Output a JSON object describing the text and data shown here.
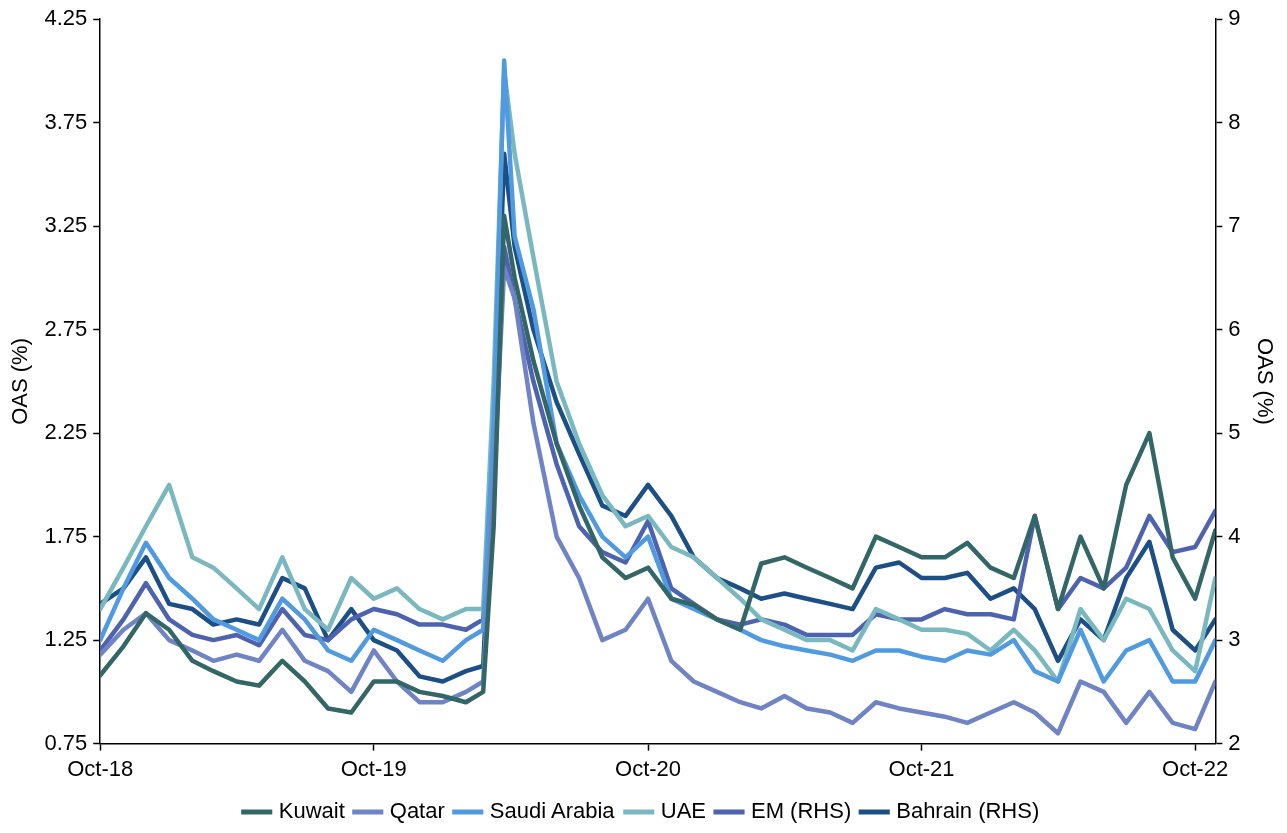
{
  "chart_data": {
    "type": "line",
    "ylabel": "OAS (%)",
    "y2label": "OAS (%)",
    "x": [
      "2018-10-01",
      "2018-11-01",
      "2018-12-01",
      "2019-01-01",
      "2019-02-01",
      "2019-03-01",
      "2019-04-01",
      "2019-05-01",
      "2019-06-01",
      "2019-07-01",
      "2019-08-01",
      "2019-09-01",
      "2019-10-01",
      "2019-11-01",
      "2019-12-01",
      "2020-01-01",
      "2020-02-01",
      "2020-02-24",
      "2020-03-09",
      "2020-03-23",
      "2020-04-06",
      "2020-05-01",
      "2020-06-01",
      "2020-07-01",
      "2020-08-01",
      "2020-09-01",
      "2020-10-01",
      "2020-11-01",
      "2020-12-01",
      "2021-01-01",
      "2021-02-01",
      "2021-03-01",
      "2021-04-01",
      "2021-05-01",
      "2021-06-01",
      "2021-07-01",
      "2021-08-01",
      "2021-09-01",
      "2021-10-01",
      "2021-11-01",
      "2021-12-01",
      "2022-01-01",
      "2022-02-01",
      "2022-03-01",
      "2022-04-01",
      "2022-05-01",
      "2022-06-01",
      "2022-07-01",
      "2022-08-01",
      "2022-09-01",
      "2022-10-01",
      "2022-10-28"
    ],
    "xlim": [
      "2018-10-01",
      "2022-10-28"
    ],
    "xticks": [
      {
        "value": "2018-10-01",
        "label": "Oct-18"
      },
      {
        "value": "2019-10-01",
        "label": "Oct-19"
      },
      {
        "value": "2020-10-01",
        "label": "Oct-20"
      },
      {
        "value": "2021-10-01",
        "label": "Oct-21"
      },
      {
        "value": "2022-10-01",
        "label": "Oct-22"
      }
    ],
    "ylim": [
      0.75,
      4.25
    ],
    "yticks": [
      0.75,
      1.25,
      1.75,
      2.25,
      2.75,
      3.25,
      3.75,
      4.25
    ],
    "y2lim": [
      2,
      9
    ],
    "y2ticks": [
      2,
      3,
      4,
      5,
      6,
      7,
      8,
      9
    ],
    "legend": "bottom",
    "marker": "none",
    "line_style": "solid",
    "series": [
      {
        "name": "Kuwait",
        "color": "#336666",
        "values": [
          1.08,
          1.22,
          1.38,
          1.3,
          1.15,
          1.1,
          1.05,
          1.03,
          1.15,
          1.05,
          0.92,
          0.9,
          1.05,
          1.05,
          1.0,
          0.98,
          0.95,
          1.0,
          1.8,
          3.3,
          3.0,
          2.6,
          2.2,
          1.9,
          1.65,
          1.55,
          1.6,
          1.45,
          1.42,
          1.35,
          1.3,
          1.62,
          1.65,
          1.6,
          1.55,
          1.5,
          1.75,
          1.7,
          1.65,
          1.65,
          1.72,
          1.6,
          1.55,
          1.85,
          1.4,
          1.75,
          1.5,
          2.0,
          2.25,
          1.65,
          1.45,
          1.78
        ]
      },
      {
        "name": "Qatar",
        "color": "#6f84c4",
        "values": [
          1.18,
          1.3,
          1.38,
          1.25,
          1.2,
          1.15,
          1.18,
          1.15,
          1.3,
          1.15,
          1.1,
          1.0,
          1.2,
          1.05,
          0.95,
          0.95,
          1.0,
          1.05,
          2.0,
          3.05,
          2.9,
          2.3,
          1.75,
          1.55,
          1.25,
          1.3,
          1.45,
          1.15,
          1.05,
          1.0,
          0.95,
          0.92,
          0.98,
          0.92,
          0.9,
          0.85,
          0.95,
          0.92,
          0.9,
          0.88,
          0.85,
          0.9,
          0.95,
          0.9,
          0.8,
          1.05,
          1.0,
          0.85,
          1.0,
          0.85,
          0.82,
          1.05
        ]
      },
      {
        "name": "Saudi Arabia",
        "color": "#4f9ae0",
        "values": [
          1.25,
          1.5,
          1.72,
          1.55,
          1.45,
          1.35,
          1.3,
          1.25,
          1.45,
          1.35,
          1.2,
          1.15,
          1.3,
          1.25,
          1.2,
          1.15,
          1.25,
          1.3,
          2.3,
          4.05,
          3.2,
          2.85,
          2.2,
          1.95,
          1.75,
          1.65,
          1.75,
          1.45,
          1.4,
          1.35,
          1.3,
          1.25,
          1.22,
          1.2,
          1.18,
          1.15,
          1.2,
          1.2,
          1.17,
          1.15,
          1.2,
          1.18,
          1.25,
          1.1,
          1.05,
          1.3,
          1.05,
          1.2,
          1.25,
          1.05,
          1.05,
          1.25
        ]
      },
      {
        "name": "UAE",
        "color": "#7ab8c0",
        "values": [
          1.4,
          1.6,
          1.8,
          2.0,
          1.65,
          1.6,
          1.5,
          1.4,
          1.65,
          1.4,
          1.3,
          1.55,
          1.45,
          1.5,
          1.4,
          1.35,
          1.4,
          1.4,
          2.5,
          4.0,
          3.6,
          3.1,
          2.5,
          2.2,
          1.95,
          1.8,
          1.85,
          1.7,
          1.65,
          1.55,
          1.45,
          1.35,
          1.3,
          1.25,
          1.25,
          1.2,
          1.4,
          1.35,
          1.3,
          1.3,
          1.28,
          1.2,
          1.3,
          1.2,
          1.05,
          1.4,
          1.25,
          1.45,
          1.4,
          1.2,
          1.1,
          1.55
        ]
      },
      {
        "name": "EM (RHS)",
        "color": "#4e63b0",
        "axis": "y2",
        "values": [
          2.9,
          3.2,
          3.55,
          3.2,
          3.05,
          3.0,
          3.05,
          2.95,
          3.3,
          3.05,
          3.0,
          3.2,
          3.3,
          3.25,
          3.15,
          3.15,
          3.1,
          3.2,
          4.5,
          6.8,
          6.3,
          5.5,
          4.7,
          4.1,
          3.85,
          3.75,
          4.15,
          3.5,
          3.35,
          3.2,
          3.15,
          3.2,
          3.15,
          3.05,
          3.05,
          3.05,
          3.25,
          3.2,
          3.2,
          3.3,
          3.25,
          3.25,
          3.2,
          4.2,
          3.3,
          3.6,
          3.5,
          3.7,
          4.2,
          3.85,
          3.9,
          4.25
        ]
      },
      {
        "name": "Bahrain (RHS)",
        "color": "#1b4f86",
        "axis": "y2",
        "values": [
          3.35,
          3.5,
          3.8,
          3.35,
          3.3,
          3.15,
          3.2,
          3.15,
          3.6,
          3.5,
          3.0,
          3.3,
          3.0,
          2.9,
          2.65,
          2.6,
          2.7,
          2.75,
          4.8,
          7.7,
          6.8,
          6.0,
          5.3,
          4.8,
          4.3,
          4.2,
          4.5,
          4.2,
          3.8,
          3.6,
          3.5,
          3.4,
          3.45,
          3.4,
          3.35,
          3.3,
          3.7,
          3.75,
          3.6,
          3.6,
          3.65,
          3.4,
          3.5,
          3.3,
          2.8,
          3.2,
          3.0,
          3.6,
          3.95,
          3.1,
          2.9,
          3.2
        ]
      }
    ]
  }
}
